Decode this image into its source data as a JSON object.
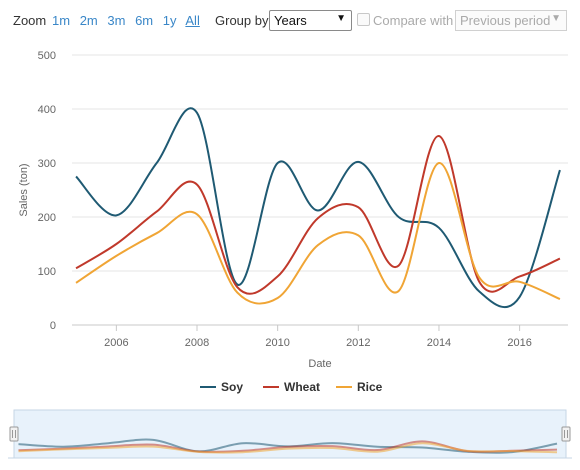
{
  "toolbar": {
    "zoom_label": "Zoom",
    "zoom_options": [
      "1m",
      "2m",
      "3m",
      "6m",
      "1y",
      "All"
    ],
    "zoom_active": "All",
    "group_label": "Group by",
    "group_value": "Years",
    "compare_label": "Compare with",
    "compare_checked": false,
    "period_value": "Previous period"
  },
  "chart_data": {
    "type": "line",
    "xlabel": "Date",
    "ylabel": "Sales (ton)",
    "xlim": [
      2004.9,
      2017.2
    ],
    "ylim": [
      0,
      500
    ],
    "yticks": [
      "0",
      "100",
      "200",
      "300",
      "400",
      "500"
    ],
    "xticks": [
      "2006",
      "2008",
      "2010",
      "2012",
      "2014",
      "2016"
    ],
    "x": [
      2005,
      2006,
      2007,
      2008,
      2009,
      2010,
      2011,
      2012,
      2013,
      2014,
      2015,
      2016,
      2017
    ],
    "series": [
      {
        "name": "Soy",
        "color": "#1f5a73",
        "values": [
          275,
          203,
          300,
          393,
          75,
          300,
          212,
          302,
          200,
          180,
          62,
          52,
          287
        ]
      },
      {
        "name": "Wheat",
        "color": "#c0392b",
        "values": [
          105,
          150,
          210,
          260,
          70,
          90,
          198,
          218,
          110,
          350,
          80,
          90,
          123
        ]
      },
      {
        "name": "Rice",
        "color": "#f0a535",
        "values": [
          78,
          128,
          170,
          205,
          60,
          50,
          148,
          166,
          63,
          300,
          88,
          80,
          48
        ]
      }
    ],
    "legend_position": "bottom-center",
    "grid": true
  }
}
